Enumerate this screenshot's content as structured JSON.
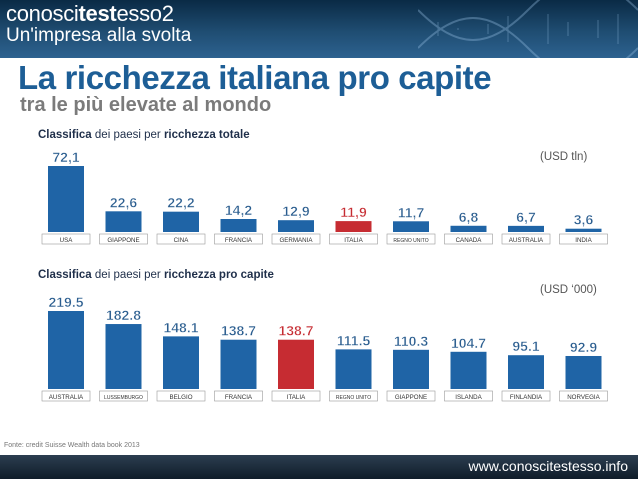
{
  "header": {
    "brand_plain": "conosci",
    "brand_bold": "test",
    "brand_tail": "esso2",
    "tagline": "Un'impresa alla svolta"
  },
  "title": "La ricchezza italiana pro capite",
  "subtitle": "tra le più elevate al mondo",
  "source": "Fonte: credit Suisse Wealth data book 2013",
  "footer_url": "www.conoscitestesso.info",
  "colors": {
    "bar": "#1f64a6",
    "highlight": "#c62c32",
    "value_text": "#2a5d8f",
    "value_highlight": "#c62c32"
  },
  "charts": {
    "total": {
      "label_bold1": "Classifica",
      "label_mid": " dei paesi per ",
      "label_bold2": "ricchezza totale",
      "unit": "(USD tln)"
    },
    "per_capita": {
      "label_bold1": "Classifica",
      "label_mid": " dei paesi per ",
      "label_bold2": "ricchezza pro capite",
      "unit": "(USD ‘000)"
    }
  },
  "chart_data": [
    {
      "type": "bar",
      "title": "Classifica dei paesi per ricchezza totale",
      "unit": "(USD tln)",
      "categories": [
        "USA",
        "GIAPPONE",
        "CINA",
        "FRANCIA",
        "GERMANIA",
        "ITALIA",
        "REGNO UNITO",
        "CANADA",
        "AUSTRALIA",
        "INDIA"
      ],
      "values": [
        72.1,
        22.6,
        22.2,
        14.2,
        12.9,
        11.9,
        11.7,
        6.8,
        6.7,
        3.6
      ],
      "labels": [
        "72,1",
        "22,6",
        "22,2",
        "14,2",
        "12,9",
        "11,9",
        "11,7",
        "6,8",
        "6,7",
        "3,6"
      ],
      "highlight": "ITALIA"
    },
    {
      "type": "bar",
      "title": "Classifica dei paesi per ricchezza pro capite",
      "unit": "(USD ‘000)",
      "categories": [
        "AUSTRALIA",
        "LUSSEMBURGO",
        "BELGIO",
        "FRANCIA",
        "ITALIA",
        "REGNO UNITO",
        "GIAPPONE",
        "ISLANDA",
        "FINLANDIA",
        "NORVEGIA"
      ],
      "values": [
        219.5,
        182.8,
        148.1,
        138.7,
        138.7,
        111.5,
        110.3,
        104.7,
        95.1,
        92.9
      ],
      "labels": [
        "219.5",
        "182.8",
        "148.1",
        "138.7",
        "138.7",
        "111.5",
        "110.3",
        "104.7",
        "95.1",
        "92.9"
      ],
      "highlight": "ITALIA"
    }
  ]
}
